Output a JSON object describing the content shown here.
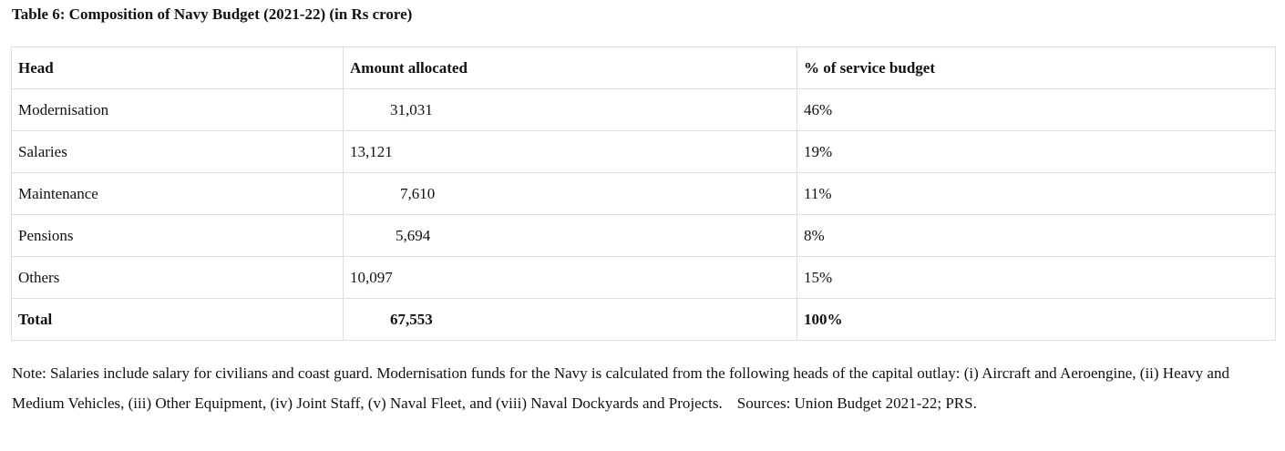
{
  "title": "Table 6: Composition of Navy Budget (2021-22) (in Rs crore)",
  "table": {
    "headers": [
      "Head",
      "Amount allocated",
      "% of service budget"
    ],
    "rows": [
      {
        "head": "Modernisation",
        "amount": "31,031",
        "percent": "46%"
      },
      {
        "head": "Salaries",
        "amount": "13,121",
        "percent": "19%"
      },
      {
        "head": "Maintenance",
        "amount": "7,610",
        "percent": "11%"
      },
      {
        "head": "Pensions",
        "amount": "5,694",
        "percent": "8%"
      },
      {
        "head": "Others",
        "amount": "10,097",
        "percent": "15%"
      }
    ],
    "total": {
      "head": "Total",
      "amount": "67,553",
      "percent": "100%"
    }
  },
  "note": {
    "text": "Note: Salaries include salary for civilians and coast guard.  Modernisation funds for the Navy is calculated from the following heads of the capital outlay: (i) Aircraft and Aeroengine, (ii) Heavy and Medium Vehicles, (iii) Other Equipment, (iv) Joint Staff, (v) Naval Fleet, and (viii) Naval Dockyards and Projects.",
    "sources": "Sources: Union Budget 2021-22; PRS."
  }
}
